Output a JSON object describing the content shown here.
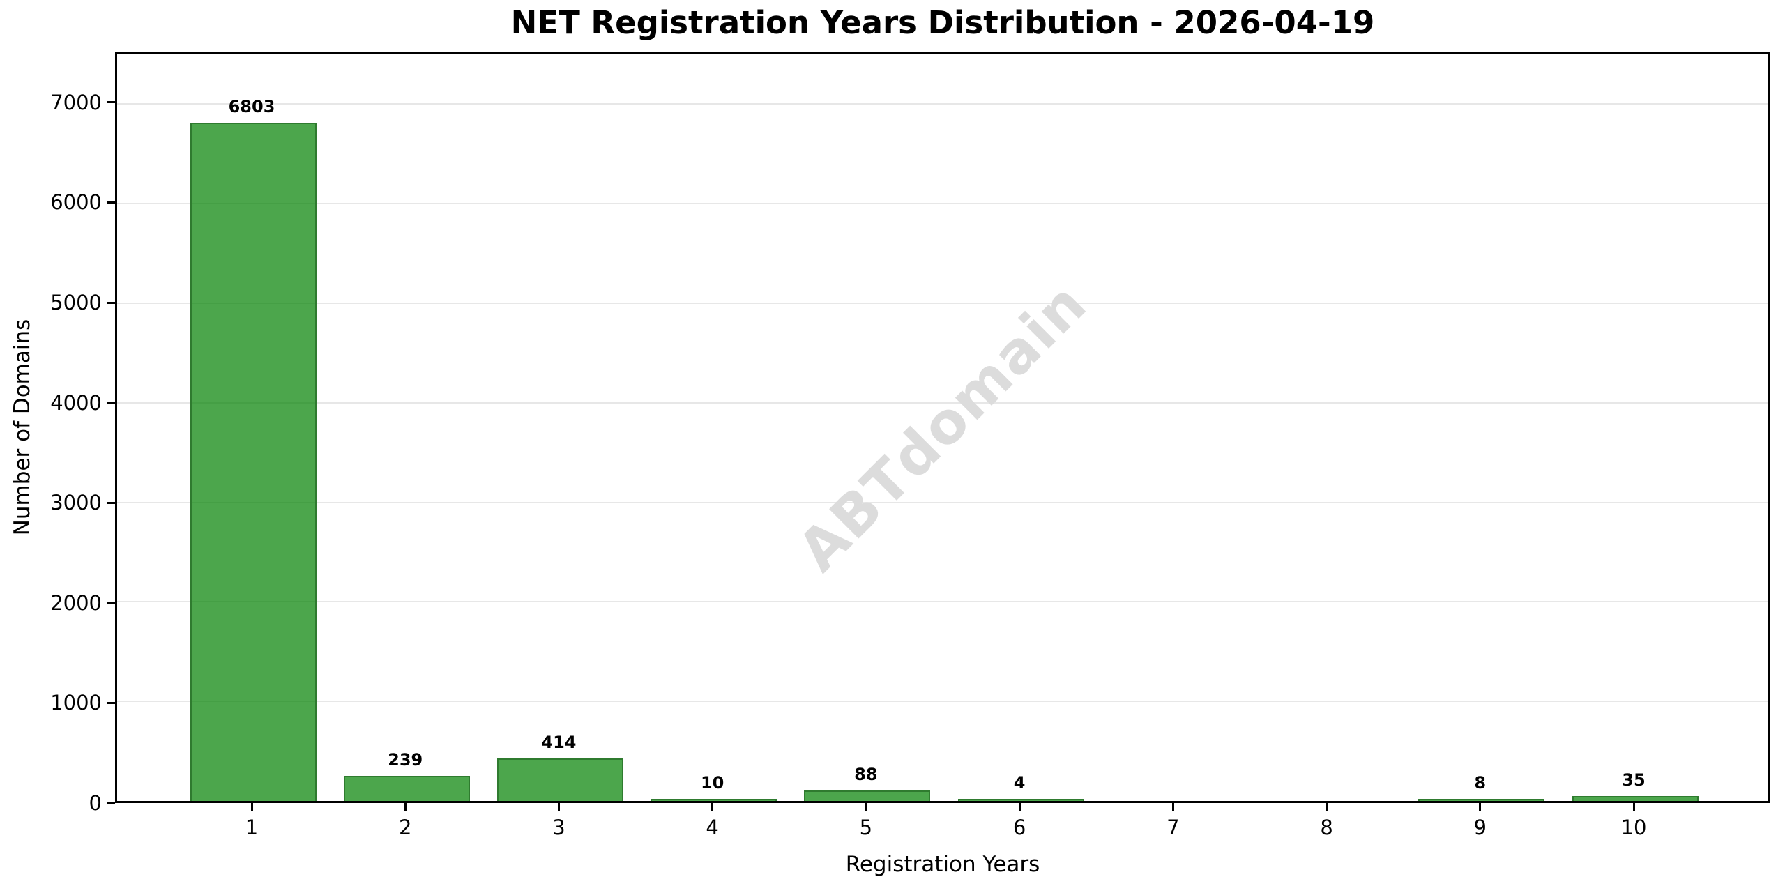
{
  "chart_data": {
    "type": "bar",
    "title": "NET Registration Years Distribution - 2026-04-19",
    "xlabel": "Registration Years",
    "ylabel": "Number of Domains",
    "categories": [
      "1",
      "2",
      "3",
      "4",
      "5",
      "6",
      "7",
      "8",
      "9",
      "10"
    ],
    "values": [
      6803,
      239,
      414,
      10,
      88,
      4,
      0,
      0,
      8,
      35
    ],
    "bar_labels": [
      "6803",
      "239",
      "414",
      "10",
      "88",
      "4",
      "",
      "",
      "8",
      "35"
    ],
    "ylim": [
      0,
      7500
    ],
    "yticks": [
      0,
      1000,
      2000,
      3000,
      4000,
      5000,
      6000,
      7000
    ],
    "ytick_labels": [
      "0",
      "1000",
      "2000",
      "3000",
      "4000",
      "5000",
      "6000",
      "7000"
    ],
    "grid": "horizontal-major",
    "legend": "none",
    "colors": {
      "bar_fill": "#4ca64c",
      "bar_edge": "#2f7b2f",
      "gridline": "#e7e7e7",
      "text": "#000000",
      "background": "#ffffff",
      "watermark": "#dcdcdc"
    },
    "watermark": {
      "text": "ABTdomain",
      "rotation_deg": -45
    }
  }
}
